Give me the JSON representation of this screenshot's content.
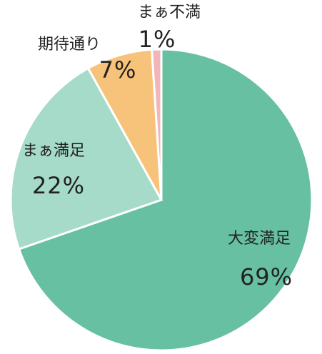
{
  "chart_data": {
    "type": "pie",
    "categories": [
      "大変満足",
      "まぁ満足",
      "期待通り",
      "まぁ不満"
    ],
    "values": [
      69,
      22,
      7,
      1
    ],
    "value_labels": [
      "69%",
      "22%",
      "7%",
      "1%"
    ],
    "colors": [
      "#68c0a2",
      "#a5dbc8",
      "#f7c27a",
      "#f2b5b9"
    ]
  }
}
